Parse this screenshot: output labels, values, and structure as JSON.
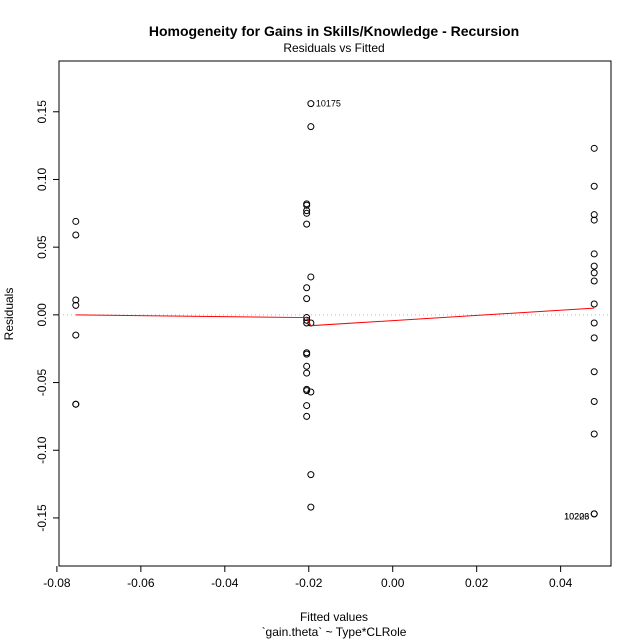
{
  "chart_data": {
    "type": "scatter",
    "title": "Homogeneity for Gains in Skills/Knowledge - Recursion",
    "subtitle": "Residuals vs Fitted",
    "xlabel": "Fitted values",
    "xlabel2": "`gain.theta` ~ Type*CLRole",
    "ylabel": "Residuals",
    "xlim": [
      -0.0795,
      0.052
    ],
    "ylim": [
      -0.1855,
      0.1875
    ],
    "x_ticks": [
      -0.08,
      -0.06,
      -0.04,
      -0.02,
      0.0,
      0.02,
      0.04
    ],
    "x_tick_labels": [
      "-0.08",
      "-0.06",
      "-0.04",
      "-0.02",
      "0.00",
      "0.02",
      "0.04"
    ],
    "y_ticks": [
      -0.15,
      -0.1,
      -0.05,
      0.0,
      0.05,
      0.1,
      0.15
    ],
    "y_tick_labels": [
      "-0.15",
      "-0.10",
      "-0.05",
      "0.00",
      "0.05",
      "0.10",
      "0.15"
    ],
    "zero_line": 0,
    "points": [
      {
        "x": -0.0755,
        "y": 0.069
      },
      {
        "x": -0.0755,
        "y": 0.059
      },
      {
        "x": -0.0755,
        "y": 0.011
      },
      {
        "x": -0.0755,
        "y": 0.007
      },
      {
        "x": -0.0755,
        "y": -0.015
      },
      {
        "x": -0.0755,
        "y": -0.066
      },
      {
        "x": -0.0755,
        "y": -0.066
      },
      {
        "x": -0.0195,
        "y": 0.156
      },
      {
        "x": -0.0195,
        "y": 0.139
      },
      {
        "x": -0.0205,
        "y": 0.082
      },
      {
        "x": -0.0205,
        "y": 0.081
      },
      {
        "x": -0.0205,
        "y": 0.077
      },
      {
        "x": -0.0205,
        "y": 0.075
      },
      {
        "x": -0.0205,
        "y": 0.067
      },
      {
        "x": -0.0195,
        "y": 0.028
      },
      {
        "x": -0.0205,
        "y": 0.02
      },
      {
        "x": -0.0205,
        "y": 0.012
      },
      {
        "x": -0.0205,
        "y": -0.002
      },
      {
        "x": -0.0205,
        "y": -0.004
      },
      {
        "x": -0.0205,
        "y": -0.006
      },
      {
        "x": -0.0195,
        "y": -0.006
      },
      {
        "x": -0.0205,
        "y": -0.028
      },
      {
        "x": -0.0205,
        "y": -0.029
      },
      {
        "x": -0.0205,
        "y": -0.038
      },
      {
        "x": -0.0205,
        "y": -0.043
      },
      {
        "x": -0.0205,
        "y": -0.055
      },
      {
        "x": -0.0205,
        "y": -0.056
      },
      {
        "x": -0.0195,
        "y": -0.057
      },
      {
        "x": -0.0205,
        "y": -0.067
      },
      {
        "x": -0.0205,
        "y": -0.075
      },
      {
        "x": -0.0195,
        "y": -0.118
      },
      {
        "x": -0.0195,
        "y": -0.142
      },
      {
        "x": 0.048,
        "y": 0.123
      },
      {
        "x": 0.048,
        "y": 0.095
      },
      {
        "x": 0.048,
        "y": 0.074
      },
      {
        "x": 0.048,
        "y": 0.07
      },
      {
        "x": 0.048,
        "y": 0.045
      },
      {
        "x": 0.048,
        "y": 0.036
      },
      {
        "x": 0.048,
        "y": 0.031
      },
      {
        "x": 0.048,
        "y": 0.025
      },
      {
        "x": 0.048,
        "y": 0.008
      },
      {
        "x": 0.048,
        "y": -0.006
      },
      {
        "x": 0.048,
        "y": -0.017
      },
      {
        "x": 0.048,
        "y": -0.042
      },
      {
        "x": 0.048,
        "y": -0.064
      },
      {
        "x": 0.048,
        "y": -0.088
      },
      {
        "x": 0.048,
        "y": -0.147
      },
      {
        "x": 0.048,
        "y": -0.147
      }
    ],
    "smoother": [
      {
        "x": -0.0755,
        "y": 0.0
      },
      {
        "x": -0.0205,
        "y": -0.002
      },
      {
        "x": -0.0195,
        "y": -0.008
      },
      {
        "x": 0.048,
        "y": 0.005
      }
    ],
    "annotations": [
      {
        "text": "10175",
        "x": -0.0195,
        "y": 0.156,
        "side": "right"
      },
      {
        "text": "10203",
        "x": 0.048,
        "y": -0.149,
        "side": "left"
      },
      {
        "text": "10226",
        "x": 0.048,
        "y": -0.149,
        "side": "left"
      }
    ],
    "colors": {
      "points": "#000000",
      "smoother": "#ff0000",
      "zero_line": "#bbbbbb",
      "axis": "#000000"
    }
  }
}
